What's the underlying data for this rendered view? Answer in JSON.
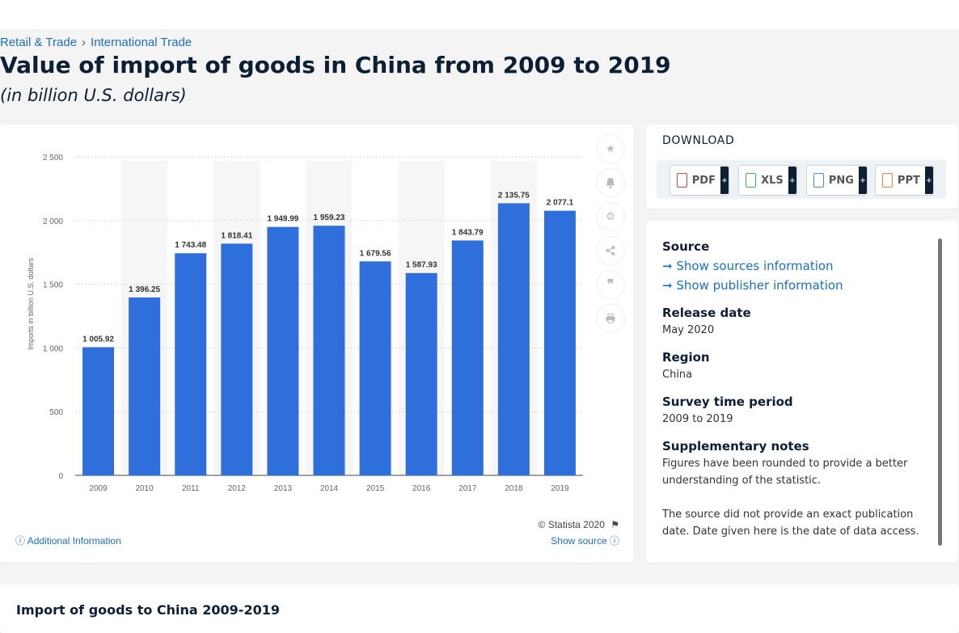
{
  "breadcrumb": {
    "first": "Retail & Trade",
    "separator": "›",
    "second": "International Trade"
  },
  "title": "Value of import of goods in China from 2009 to 2019",
  "subtitle": "(in billion U.S. dollars)",
  "chart_data": {
    "type": "bar",
    "categories": [
      "2009",
      "2010",
      "2011",
      "2012",
      "2013",
      "2014",
      "2015",
      "2016",
      "2017",
      "2018",
      "2019"
    ],
    "values": [
      1005.92,
      1396.25,
      1743.48,
      1818.41,
      1949.99,
      1959.23,
      1679.56,
      1587.93,
      1843.79,
      2135.75,
      2077.1
    ],
    "value_labels": [
      "1 005.92",
      "1 396.25",
      "1 743.48",
      "1 818.41",
      "1 949.99",
      "1 959.23",
      "1 679.56",
      "1 587.93",
      "1 843.79",
      "2 135.75",
      "2 077.1"
    ],
    "yticks": [
      0,
      500,
      1000,
      1500,
      2000,
      2500
    ],
    "ytick_labels": [
      "0",
      "500",
      "1 000",
      "1 500",
      "2 000",
      "2 500"
    ],
    "ylim": [
      0,
      2500
    ],
    "ylabel": "Imports in billion U.S. dollars",
    "xlabel": "",
    "grid": true,
    "bar_color": "#2f6fdc"
  },
  "chart_footer": {
    "copyright": "© Statista 2020",
    "additional_info": "Additional Information",
    "show_source": "Show source"
  },
  "sidebar_actions": [
    "star-icon",
    "bell-icon",
    "gear-icon",
    "share-icon",
    "quote-icon",
    "print-icon"
  ],
  "download": {
    "title": "DOWNLOAD",
    "buttons": [
      {
        "label": "PDF",
        "plus": "+",
        "color": "#d9453d"
      },
      {
        "label": "XLS",
        "plus": "+",
        "color": "#4caf50"
      },
      {
        "label": "PNG",
        "plus": "+",
        "color": "#4a90d9"
      },
      {
        "label": "PPT",
        "plus": "+",
        "color": "#e8833a"
      }
    ]
  },
  "info": {
    "source_heading": "Source",
    "show_sources": "Show sources information",
    "show_publisher": "Show publisher information",
    "release_heading": "Release date",
    "release_value": "May 2020",
    "region_heading": "Region",
    "region_value": "China",
    "survey_heading": "Survey time period",
    "survey_value": "2009 to 2019",
    "notes_heading": "Supplementary notes",
    "notes_1": "Figures have been rounded to provide a better understanding of the statistic.",
    "notes_2": "The source did not provide an exact publication date. Date given here is the date of data access."
  },
  "bottom": {
    "title": "Import of goods to China 2009-2019"
  }
}
